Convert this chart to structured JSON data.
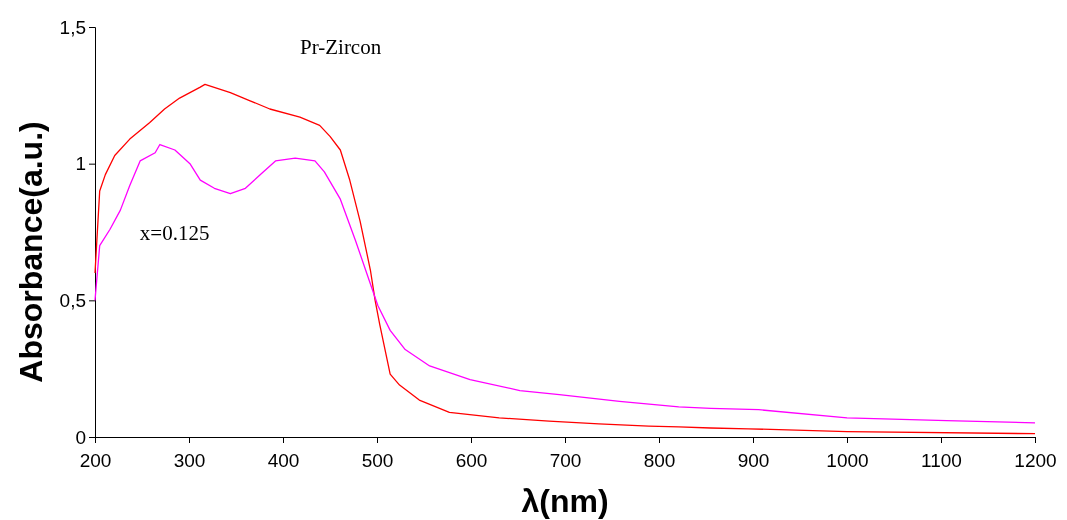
{
  "chart_data": {
    "type": "line",
    "xlabel": "λ(nm)",
    "ylabel": "Absorbance(a.u.)",
    "xlim": [
      200,
      1200
    ],
    "ylim": [
      0,
      1.5
    ],
    "xticks": [
      200,
      300,
      400,
      500,
      600,
      700,
      800,
      900,
      1000,
      1100,
      1200
    ],
    "yticks": [
      0,
      {
        "value": 0.5,
        "label": "0,5"
      },
      1,
      {
        "value": 1.5,
        "label": "1,5"
      }
    ],
    "grid": false,
    "marker": "none",
    "line_style": "solid",
    "series": [
      {
        "name": "Pr-Zircon",
        "color": "#ff0000",
        "x": [
          200,
          205,
          211,
          221,
          237,
          258,
          274,
          290,
          312,
          317,
          344,
          365,
          386,
          418,
          439,
          450,
          461,
          471,
          482,
          493,
          498,
          503,
          514,
          524,
          545,
          577,
          630,
          683,
          736,
          789,
          821,
          855,
          895,
          1000,
          1200
        ],
        "values": [
          0.6,
          0.9,
          0.96,
          1.03,
          1.09,
          1.15,
          1.2,
          1.24,
          1.28,
          1.29,
          1.26,
          1.23,
          1.2,
          1.17,
          1.14,
          1.1,
          1.05,
          0.94,
          0.79,
          0.61,
          0.5,
          0.41,
          0.23,
          0.19,
          0.135,
          0.09,
          0.07,
          0.058,
          0.048,
          0.04,
          0.037,
          0.033,
          0.03,
          0.02,
          0.012
        ]
      },
      {
        "name": "x=0.125",
        "color": "#ff00ff",
        "x": [
          200,
          205,
          216,
          227,
          237,
          248,
          264,
          269,
          285,
          301,
          312,
          327,
          344,
          360,
          376,
          392,
          413,
          434,
          444,
          461,
          477,
          493,
          501,
          514,
          530,
          556,
          599,
          652,
          694,
          758,
          821,
          855,
          906,
          1000,
          1106,
          1200
        ],
        "values": [
          0.5,
          0.7,
          0.76,
          0.83,
          0.92,
          1.01,
          1.04,
          1.07,
          1.05,
          1.0,
          0.94,
          0.91,
          0.89,
          0.91,
          0.96,
          1.01,
          1.02,
          1.01,
          0.97,
          0.87,
          0.72,
          0.56,
          0.48,
          0.39,
          0.32,
          0.26,
          0.21,
          0.17,
          0.155,
          0.13,
          0.11,
          0.105,
          0.1,
          0.07,
          0.06,
          0.052
        ]
      }
    ]
  }
}
